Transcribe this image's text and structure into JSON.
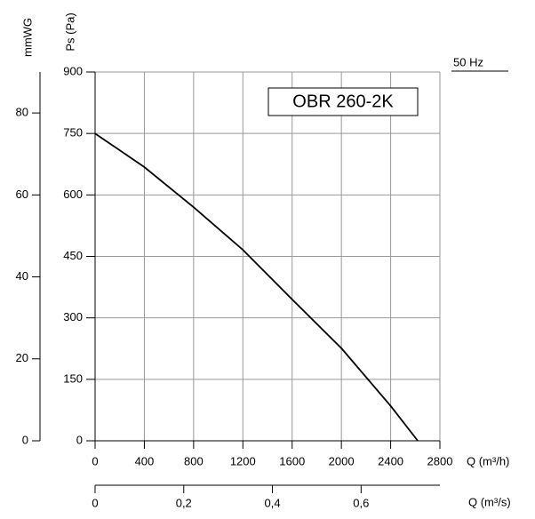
{
  "chart_data": {
    "type": "line",
    "title": "OBR 260-2K",
    "annotations": [
      "50 Hz"
    ],
    "xlabel": "Q (m³/h)",
    "ylabel": "Ps (Pa)",
    "x2label": "Q (m³/s)",
    "y2label": "mmWG",
    "x": [
      0,
      400,
      800,
      1200,
      1600,
      2000,
      2400,
      2620
    ],
    "series": [
      {
        "color": "#000000",
        "values": [
          750,
          668,
          570,
          466,
          345,
          226,
          85,
          0
        ]
      }
    ],
    "xlim": [
      0,
      2800
    ],
    "xticks": [
      0,
      400,
      800,
      1200,
      1600,
      2000,
      2400,
      2800
    ],
    "ylim": [
      0,
      900
    ],
    "yticks": [
      0,
      150,
      300,
      450,
      600,
      750,
      900
    ],
    "x2lim": [
      0,
      0.7778
    ],
    "x2ticks": [
      0,
      {
        "value": 0.2,
        "label": "0,2"
      },
      {
        "value": 0.4,
        "label": "0,4"
      },
      {
        "value": 0.6,
        "label": "0,6"
      }
    ],
    "y2lim": [
      0,
      90
    ],
    "y2ticks": [
      0,
      20,
      40,
      60,
      80
    ],
    "grid": true
  }
}
